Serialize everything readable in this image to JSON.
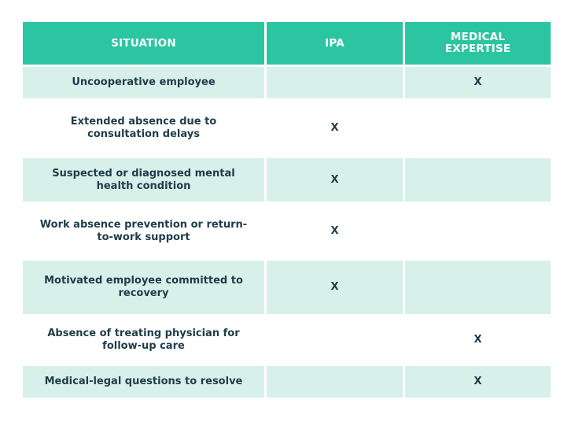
{
  "header": {
    "situation": "SITUATION",
    "ipa": "IPA",
    "medical_expertise": "MEDICAL EXPERTISE"
  },
  "rows": [
    {
      "situation": "Uncooperative employee",
      "ipa": "",
      "medical": "X"
    },
    {
      "situation": "Extended absence due to consultation delays",
      "ipa": "X",
      "medical": ""
    },
    {
      "situation": "Suspected or diagnosed mental health condition",
      "ipa": "X",
      "medical": ""
    },
    {
      "situation": "Work absence prevention or return-to-work support",
      "ipa": "X",
      "medical": ""
    },
    {
      "situation": "Motivated employee committed to recovery",
      "ipa": "X",
      "medical": ""
    },
    {
      "situation": "Absence of treating physician for follow-up care",
      "ipa": "",
      "medical": "X"
    },
    {
      "situation": "Medical-legal questions to resolve",
      "ipa": "",
      "medical": "X"
    }
  ],
  "colors": {
    "header_bg": "#2cc5a1",
    "shaded_row_bg": "#d8f0ea",
    "text": "#1f3d4a"
  }
}
